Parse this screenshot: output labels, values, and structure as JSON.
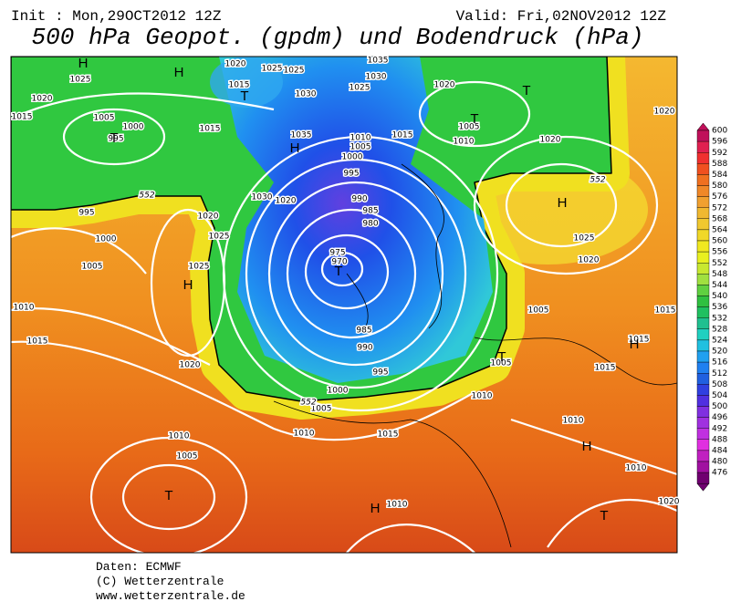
{
  "header": {
    "init": "Init : Mon,29OCT2012 12Z",
    "valid": "Valid: Fri,02NOV2012 12Z",
    "title": "500 hPa Geopot. (gpdm) und Bodendruck (hPa)"
  },
  "colorbar": {
    "labels": [
      600,
      596,
      592,
      588,
      584,
      580,
      576,
      572,
      568,
      564,
      560,
      556,
      552,
      548,
      544,
      540,
      536,
      532,
      528,
      524,
      520,
      516,
      512,
      508,
      504,
      500,
      496,
      492,
      488,
      484,
      480,
      476
    ]
  },
  "isobar_labels": [
    1020,
    1025,
    1025,
    1035,
    1030,
    1025,
    1020,
    1025,
    1020,
    1015,
    1030,
    1015,
    1005,
    1000,
    1015,
    1035,
    1010,
    1005,
    1000,
    1015,
    1010,
    1005,
    995,
    1020,
    1020,
    995,
    1030,
    1020,
    990,
    985,
    980,
    995,
    1020,
    1025,
    1000,
    1025,
    1020,
    1005,
    1025,
    975,
    970,
    1010,
    1005,
    1015,
    985,
    990,
    1015,
    1015,
    1005,
    1020,
    995,
    1015,
    1000,
    1010,
    1005,
    1010,
    1015,
    1010,
    1010,
    1005,
    1010,
    1010,
    1020
  ],
  "contour_labels": [
    552,
    552,
    552
  ],
  "centers": [
    "H",
    "H",
    "T",
    "T",
    "T",
    "H",
    "T",
    "H",
    "H",
    "T",
    "T",
    "H",
    "H",
    "T",
    "H",
    "T"
  ],
  "footer": [
    "Daten: ECMWF",
    "(C) Wetterzentrale",
    "www.wetterzentrale.de"
  ]
}
